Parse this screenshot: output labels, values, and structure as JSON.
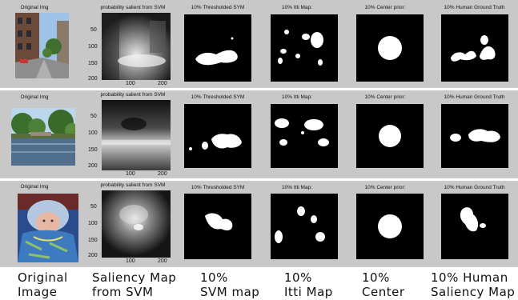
{
  "rows": [
    {
      "original_title": "Original Img",
      "svm_title": "probability salient from SVM",
      "thresh_title": "10% Thresholded SYM",
      "itti_title": "10% Itti Map:",
      "center_title": "10% Center prior:",
      "human_title": "10% Human Ground Truth",
      "y_ticks": [
        "50",
        "100",
        "150",
        "200"
      ],
      "x_ticks": [
        "100",
        "200"
      ]
    },
    {
      "original_title": "Original Img",
      "svm_title": "probability salient from SVM",
      "thresh_title": "10% Thresholded SYM",
      "itti_title": "10% Itti Map:",
      "center_title": "10% Center prior:",
      "human_title": "10% Human Ground Truth",
      "y_ticks": [
        "50",
        "100",
        "150",
        "200"
      ],
      "x_ticks": [
        "100",
        "200"
      ]
    },
    {
      "original_title": "Original Img",
      "svm_title": "probability salient from SVM",
      "thresh_title": "10% Thresholded SYM",
      "itti_title": "10% Itti Map:",
      "center_title": "10% Center prior:",
      "human_title": "10% Human Ground Truth",
      "y_ticks": [
        "50",
        "100",
        "150",
        "200"
      ],
      "x_ticks": [
        "100",
        "200"
      ]
    }
  ],
  "captions": [
    {
      "line1": "Original",
      "line2": "Image"
    },
    {
      "line1": "Saliency Map",
      "line2": "from SVM"
    },
    {
      "line1": "10%",
      "line2": "SVM map"
    },
    {
      "line1": "10%",
      "line2": "Itti Map"
    },
    {
      "line1": "10%",
      "line2": "Center"
    },
    {
      "line1": "10% Human",
      "line2": "Saliency Map"
    }
  ]
}
